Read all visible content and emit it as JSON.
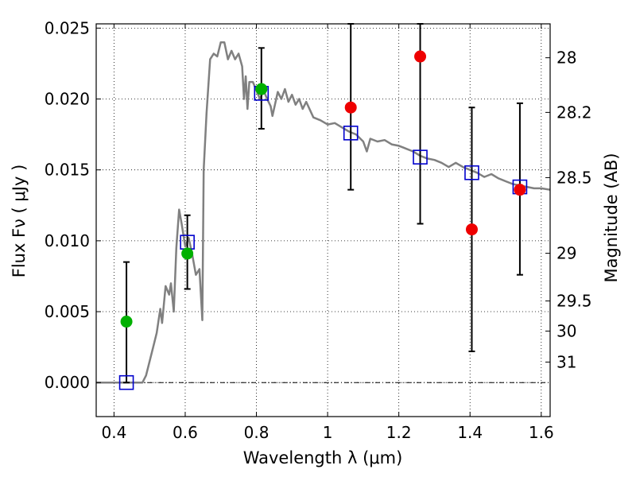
{
  "chart_data": {
    "type": "scatter",
    "title": "",
    "xlabel": "Wavelength  λ (μm)",
    "ylabel": "Flux  Fν  ( μJy )",
    "ylabel_right": "Magnitude (AB)",
    "xlim": [
      0.35,
      1.625
    ],
    "ylim": [
      -0.0024,
      0.0253
    ],
    "grid": true,
    "x_ticks": [
      {
        "value": 0.4,
        "label": "0.4"
      },
      {
        "value": 0.6,
        "label": "0.6"
      },
      {
        "value": 0.8,
        "label": "0.8"
      },
      {
        "value": 1.0,
        "label": "1"
      },
      {
        "value": 1.2,
        "label": "1.2"
      },
      {
        "value": 1.4,
        "label": "1.4"
      },
      {
        "value": 1.6,
        "label": "1.6"
      }
    ],
    "y_ticks": [
      {
        "value": 0.0,
        "label": "0.000"
      },
      {
        "value": 0.005,
        "label": "0.005"
      },
      {
        "value": 0.01,
        "label": "0.010"
      },
      {
        "value": 0.015,
        "label": "0.015"
      },
      {
        "value": 0.02,
        "label": "0.020"
      },
      {
        "value": 0.025,
        "label": "0.025"
      }
    ],
    "mag_ticks": [
      {
        "value": 28,
        "label": "28"
      },
      {
        "value": 28.2,
        "label": "28.2"
      },
      {
        "value": 28.5,
        "label": "28.5"
      },
      {
        "value": 29,
        "label": "29"
      },
      {
        "value": 29.5,
        "label": "29.5"
      },
      {
        "value": 30,
        "label": "30"
      },
      {
        "value": 31,
        "label": "31"
      }
    ],
    "mag_zero_point": 23.9,
    "zero_line": 0.0,
    "colors": {
      "spectrum": "#808080",
      "model": "#0000cc",
      "detection": "#00b000",
      "nondetection": "#ee0000",
      "errorbar": "#000000"
    },
    "spectrum": [
      [
        0.35,
        0.0
      ],
      [
        0.48,
        0.0
      ],
      [
        0.49,
        0.0005
      ],
      [
        0.5,
        0.0015
      ],
      [
        0.51,
        0.0025
      ],
      [
        0.52,
        0.0035
      ],
      [
        0.53,
        0.0052
      ],
      [
        0.535,
        0.0042
      ],
      [
        0.545,
        0.0068
      ],
      [
        0.555,
        0.0062
      ],
      [
        0.56,
        0.007
      ],
      [
        0.568,
        0.005
      ],
      [
        0.575,
        0.0095
      ],
      [
        0.583,
        0.0122
      ],
      [
        0.59,
        0.0112
      ],
      [
        0.6,
        0.0096
      ],
      [
        0.61,
        0.0102
      ],
      [
        0.62,
        0.009
      ],
      [
        0.63,
        0.0076
      ],
      [
        0.64,
        0.008
      ],
      [
        0.648,
        0.0044
      ],
      [
        0.652,
        0.015
      ],
      [
        0.66,
        0.019
      ],
      [
        0.67,
        0.0228
      ],
      [
        0.68,
        0.0232
      ],
      [
        0.69,
        0.023
      ],
      [
        0.7,
        0.024
      ],
      [
        0.71,
        0.024
      ],
      [
        0.72,
        0.0228
      ],
      [
        0.73,
        0.0234
      ],
      [
        0.74,
        0.0228
      ],
      [
        0.75,
        0.0232
      ],
      [
        0.76,
        0.0223
      ],
      [
        0.765,
        0.02
      ],
      [
        0.77,
        0.0216
      ],
      [
        0.775,
        0.0193
      ],
      [
        0.78,
        0.0212
      ],
      [
        0.79,
        0.0212
      ],
      [
        0.8,
        0.0206
      ],
      [
        0.81,
        0.02
      ],
      [
        0.82,
        0.0206
      ],
      [
        0.83,
        0.02
      ],
      [
        0.84,
        0.0195
      ],
      [
        0.845,
        0.0188
      ],
      [
        0.86,
        0.0205
      ],
      [
        0.87,
        0.02
      ],
      [
        0.88,
        0.0207
      ],
      [
        0.89,
        0.0198
      ],
      [
        0.9,
        0.0203
      ],
      [
        0.91,
        0.0196
      ],
      [
        0.92,
        0.02
      ],
      [
        0.93,
        0.0193
      ],
      [
        0.94,
        0.0198
      ],
      [
        0.96,
        0.0187
      ],
      [
        0.98,
        0.0185
      ],
      [
        1.0,
        0.0182
      ],
      [
        1.02,
        0.0183
      ],
      [
        1.04,
        0.018
      ],
      [
        1.06,
        0.0177
      ],
      [
        1.08,
        0.0175
      ],
      [
        1.1,
        0.017
      ],
      [
        1.11,
        0.0163
      ],
      [
        1.12,
        0.0172
      ],
      [
        1.14,
        0.017
      ],
      [
        1.16,
        0.0171
      ],
      [
        1.18,
        0.0168
      ],
      [
        1.2,
        0.0167
      ],
      [
        1.22,
        0.0165
      ],
      [
        1.24,
        0.0163
      ],
      [
        1.26,
        0.016
      ],
      [
        1.28,
        0.0158
      ],
      [
        1.3,
        0.0157
      ],
      [
        1.32,
        0.0155
      ],
      [
        1.34,
        0.0152
      ],
      [
        1.36,
        0.0155
      ],
      [
        1.38,
        0.0152
      ],
      [
        1.4,
        0.015
      ],
      [
        1.42,
        0.0148
      ],
      [
        1.44,
        0.0145
      ],
      [
        1.46,
        0.0147
      ],
      [
        1.48,
        0.0144
      ],
      [
        1.5,
        0.0142
      ],
      [
        1.52,
        0.014
      ],
      [
        1.54,
        0.0139
      ],
      [
        1.56,
        0.0138
      ],
      [
        1.58,
        0.0137
      ],
      [
        1.6,
        0.0137
      ],
      [
        1.625,
        0.0136
      ]
    ],
    "model_points": [
      {
        "x": 0.435,
        "y": 0.0
      },
      {
        "x": 0.606,
        "y": 0.0099
      },
      {
        "x": 0.814,
        "y": 0.0204
      },
      {
        "x": 1.065,
        "y": 0.0176
      },
      {
        "x": 1.26,
        "y": 0.0159
      },
      {
        "x": 1.405,
        "y": 0.0148
      },
      {
        "x": 1.54,
        "y": 0.0138
      }
    ],
    "detections": [
      {
        "x": 0.435,
        "y": 0.0043,
        "err_low": 0.0,
        "err_high": 0.0085
      },
      {
        "x": 0.606,
        "y": 0.0091,
        "err_low": 0.0066,
        "err_high": 0.0118
      },
      {
        "x": 0.814,
        "y": 0.0207,
        "err_low": 0.0179,
        "err_high": 0.0236
      }
    ],
    "nondetections": [
      {
        "x": 1.065,
        "y": 0.0194,
        "err_low": 0.0136,
        "err_high": 0.0253
      },
      {
        "x": 1.26,
        "y": 0.023,
        "err_low": 0.0112,
        "err_high": 0.0253
      },
      {
        "x": 1.405,
        "y": 0.0108,
        "err_low": 0.0022,
        "err_high": 0.0194
      },
      {
        "x": 1.54,
        "y": 0.0136,
        "err_low": 0.0076,
        "err_high": 0.0197
      }
    ]
  }
}
